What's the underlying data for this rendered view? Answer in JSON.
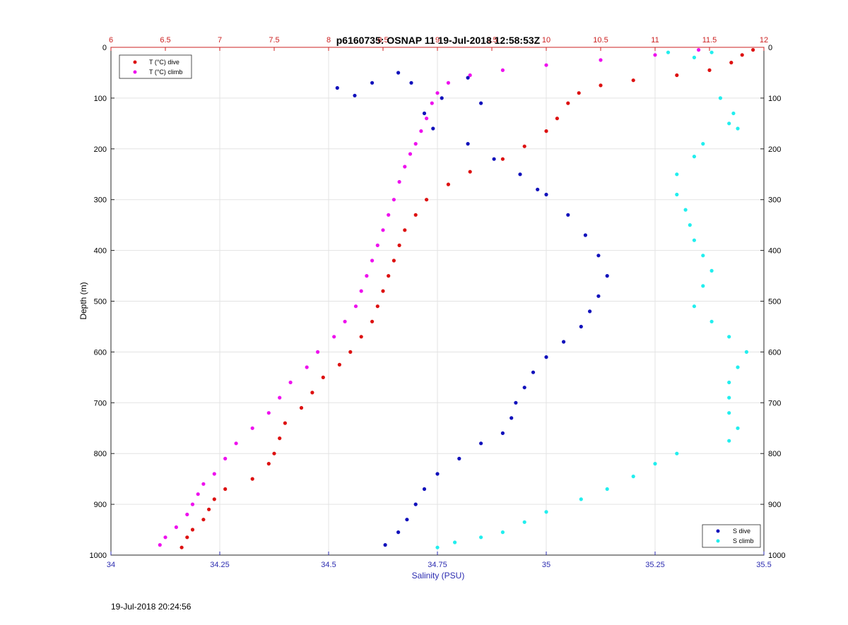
{
  "chart_data": {
    "type": "scatter",
    "title": "p6160735: OSNAP 11 19-Jul-2018 12:58:53Z",
    "ylabel": "Depth (m)",
    "ylim": [
      0,
      1000
    ],
    "y_reversed": true,
    "y_ticks": [
      0,
      100,
      200,
      300,
      400,
      500,
      600,
      700,
      800,
      900,
      1000
    ],
    "x_bottom": {
      "label": "Salinity (PSU)",
      "lim": [
        34,
        35.5
      ],
      "ticks": [
        34,
        34.25,
        34.5,
        34.75,
        35,
        35.25,
        35.5
      ],
      "tick_labels": [
        "34",
        "34.25",
        "34.5",
        "34.75",
        "35",
        "35.25",
        "35.5"
      ],
      "color": "#2b2bb0"
    },
    "x_top": {
      "label": "",
      "lim": [
        6,
        12
      ],
      "ticks": [
        6,
        6.5,
        7,
        7.5,
        8,
        8.5,
        9,
        9.5,
        10,
        10.5,
        11,
        11.5,
        12
      ],
      "tick_labels": [
        "6",
        "6.5",
        "7",
        "7.5",
        "8",
        "8.5",
        "9",
        "9.5",
        "10",
        "10.5",
        "11",
        "11.5",
        "12"
      ],
      "color": "#cc2222"
    },
    "grid": true,
    "legends": [
      {
        "placement": "top-left",
        "entries": [
          "T (°C) dive",
          "T (°C) climb"
        ]
      },
      {
        "placement": "bottom-right",
        "entries": [
          "S dive",
          "S climb"
        ]
      }
    ],
    "series": [
      {
        "name": "T (°C) dive",
        "axis": "top",
        "color": "#dd1111",
        "points": [
          [
            11.9,
            5
          ],
          [
            11.8,
            15
          ],
          [
            11.7,
            30
          ],
          [
            11.5,
            45
          ],
          [
            11.2,
            55
          ],
          [
            10.8,
            65
          ],
          [
            10.5,
            75
          ],
          [
            10.3,
            90
          ],
          [
            10.2,
            110
          ],
          [
            10.1,
            140
          ],
          [
            10.0,
            165
          ],
          [
            9.8,
            195
          ],
          [
            9.6,
            220
          ],
          [
            9.3,
            245
          ],
          [
            9.1,
            270
          ],
          [
            8.9,
            300
          ],
          [
            8.8,
            330
          ],
          [
            8.7,
            360
          ],
          [
            8.65,
            390
          ],
          [
            8.6,
            420
          ],
          [
            8.55,
            450
          ],
          [
            8.5,
            480
          ],
          [
            8.45,
            510
          ],
          [
            8.4,
            540
          ],
          [
            8.3,
            570
          ],
          [
            8.2,
            600
          ],
          [
            8.1,
            625
          ],
          [
            7.95,
            650
          ],
          [
            7.85,
            680
          ],
          [
            7.75,
            710
          ],
          [
            7.6,
            740
          ],
          [
            7.55,
            770
          ],
          [
            7.5,
            800
          ],
          [
            7.45,
            820
          ],
          [
            7.3,
            850
          ],
          [
            7.05,
            870
          ],
          [
            6.95,
            890
          ],
          [
            6.9,
            910
          ],
          [
            6.85,
            930
          ],
          [
            6.75,
            950
          ],
          [
            6.7,
            965
          ],
          [
            6.65,
            985
          ]
        ],
        "note_values_read_from_top_temperature_axis": true
      },
      {
        "name": "T (°C) climb",
        "axis": "top",
        "color": "#ee11ee",
        "points": [
          [
            11.4,
            5
          ],
          [
            11.0,
            15
          ],
          [
            10.5,
            25
          ],
          [
            10.0,
            35
          ],
          [
            9.6,
            45
          ],
          [
            9.3,
            55
          ],
          [
            9.1,
            70
          ],
          [
            9.0,
            90
          ],
          [
            8.95,
            110
          ],
          [
            8.9,
            140
          ],
          [
            8.85,
            165
          ],
          [
            8.8,
            190
          ],
          [
            8.75,
            210
          ],
          [
            8.7,
            235
          ],
          [
            8.65,
            265
          ],
          [
            8.6,
            300
          ],
          [
            8.55,
            330
          ],
          [
            8.5,
            360
          ],
          [
            8.45,
            390
          ],
          [
            8.4,
            420
          ],
          [
            8.35,
            450
          ],
          [
            8.3,
            480
          ],
          [
            8.25,
            510
          ],
          [
            8.15,
            540
          ],
          [
            8.05,
            570
          ],
          [
            7.9,
            600
          ],
          [
            7.8,
            630
          ],
          [
            7.65,
            660
          ],
          [
            7.55,
            690
          ],
          [
            7.45,
            720
          ],
          [
            7.3,
            750
          ],
          [
            7.15,
            780
          ],
          [
            7.05,
            810
          ],
          [
            6.95,
            840
          ],
          [
            6.85,
            860
          ],
          [
            6.8,
            880
          ],
          [
            6.75,
            900
          ],
          [
            6.7,
            920
          ],
          [
            6.6,
            945
          ],
          [
            6.5,
            965
          ],
          [
            6.45,
            980
          ]
        ]
      },
      {
        "name": "S dive",
        "axis": "bottom",
        "color": "#1111bb",
        "points": [
          [
            34.52,
            80
          ],
          [
            34.56,
            95
          ],
          [
            34.6,
            70
          ],
          [
            34.66,
            50
          ],
          [
            34.69,
            70
          ],
          [
            34.72,
            130
          ],
          [
            34.74,
            160
          ],
          [
            34.76,
            100
          ],
          [
            34.82,
            60
          ],
          [
            34.85,
            110
          ],
          [
            34.82,
            190
          ],
          [
            34.88,
            220
          ],
          [
            34.94,
            250
          ],
          [
            34.98,
            280
          ],
          [
            35.0,
            290
          ],
          [
            35.05,
            330
          ],
          [
            35.09,
            370
          ],
          [
            35.12,
            410
          ],
          [
            35.14,
            450
          ],
          [
            35.12,
            490
          ],
          [
            35.1,
            520
          ],
          [
            35.08,
            550
          ],
          [
            35.04,
            580
          ],
          [
            35.0,
            610
          ],
          [
            34.97,
            640
          ],
          [
            34.95,
            670
          ],
          [
            34.93,
            700
          ],
          [
            34.92,
            730
          ],
          [
            34.9,
            760
          ],
          [
            34.85,
            780
          ],
          [
            34.8,
            810
          ],
          [
            34.75,
            840
          ],
          [
            34.72,
            870
          ],
          [
            34.7,
            900
          ],
          [
            34.68,
            930
          ],
          [
            34.66,
            955
          ],
          [
            34.63,
            980
          ]
        ]
      },
      {
        "name": "S climb",
        "axis": "bottom",
        "color": "#22eeee",
        "points": [
          [
            35.28,
            10
          ],
          [
            35.34,
            20
          ],
          [
            35.38,
            10
          ],
          [
            35.4,
            100
          ],
          [
            35.43,
            130
          ],
          [
            35.44,
            160
          ],
          [
            35.42,
            150
          ],
          [
            35.36,
            190
          ],
          [
            35.34,
            215
          ],
          [
            35.3,
            250
          ],
          [
            35.3,
            290
          ],
          [
            35.32,
            320
          ],
          [
            35.33,
            350
          ],
          [
            35.34,
            380
          ],
          [
            35.36,
            410
          ],
          [
            35.38,
            440
          ],
          [
            35.36,
            470
          ],
          [
            35.34,
            510
          ],
          [
            35.38,
            540
          ],
          [
            35.42,
            570
          ],
          [
            35.46,
            600
          ],
          [
            35.44,
            630
          ],
          [
            35.42,
            660
          ],
          [
            35.42,
            690
          ],
          [
            35.42,
            720
          ],
          [
            35.44,
            750
          ],
          [
            35.42,
            775
          ],
          [
            35.3,
            800
          ],
          [
            35.25,
            820
          ],
          [
            35.2,
            845
          ],
          [
            35.14,
            870
          ],
          [
            35.08,
            890
          ],
          [
            35.0,
            915
          ],
          [
            34.95,
            935
          ],
          [
            34.9,
            955
          ],
          [
            34.85,
            965
          ],
          [
            34.79,
            975
          ],
          [
            34.75,
            985
          ]
        ]
      }
    ]
  },
  "footer": {
    "timestamp": "19-Jul-2018 20:24:56"
  },
  "colors": {
    "salinity_axis": "#2b2bb0",
    "temperature_axis": "#cc2222",
    "grid": "#e3e3e3",
    "frame": "#262626"
  }
}
